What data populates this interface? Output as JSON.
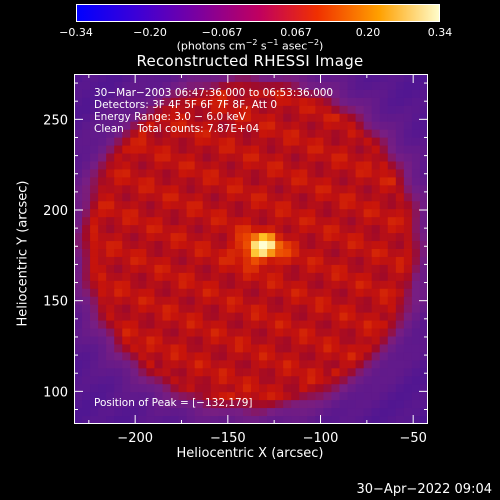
{
  "colorbar": {
    "ticks": [
      "−0.34",
      "−0.20",
      "−0.067",
      "0.067",
      "0.20",
      "0.34"
    ],
    "units_main": "(photons cm",
    "units_exp1": "−2",
    "units_mid": " s",
    "units_exp2": "−1",
    "units_mid2": " asec",
    "units_exp3": "−2",
    "units_end": ")"
  },
  "title": "Reconstructed RHESSI Image",
  "info": {
    "time_range": "30−Mar−2003 06:47:36.000 to 06:53:36.000",
    "detectors": "Detectors: 3F 4F 5F 6F 7F 8F, Att 0",
    "energy": "Energy Range: 3.0 − 6.0 keV",
    "clean": "Clean    Total counts: 7.87E+04",
    "peak": "Position of Peak = [−132,179]"
  },
  "timestamp": "30−Apr−2022 09:04",
  "chart_data": {
    "type": "heatmap",
    "title": "Reconstructed RHESSI Image",
    "xlabel": "Heliocentric X (arcsec)",
    "ylabel": "Heliocentric Y (arcsec)",
    "xlim": [
      -233,
      -42
    ],
    "ylim": [
      82,
      275
    ],
    "x_ticks": [
      -200,
      -150,
      -100,
      -50
    ],
    "x_tick_labels": [
      "−200",
      "−150",
      "−100",
      "−50"
    ],
    "y_ticks": [
      100,
      150,
      200,
      250
    ],
    "y_tick_labels": [
      "100",
      "150",
      "200",
      "250"
    ],
    "colorbar_range": [
      -0.34,
      0.34
    ],
    "peak": [
      -132,
      179
    ],
    "disk_center": [
      -138,
      181
    ],
    "disk_radius": 84
  }
}
